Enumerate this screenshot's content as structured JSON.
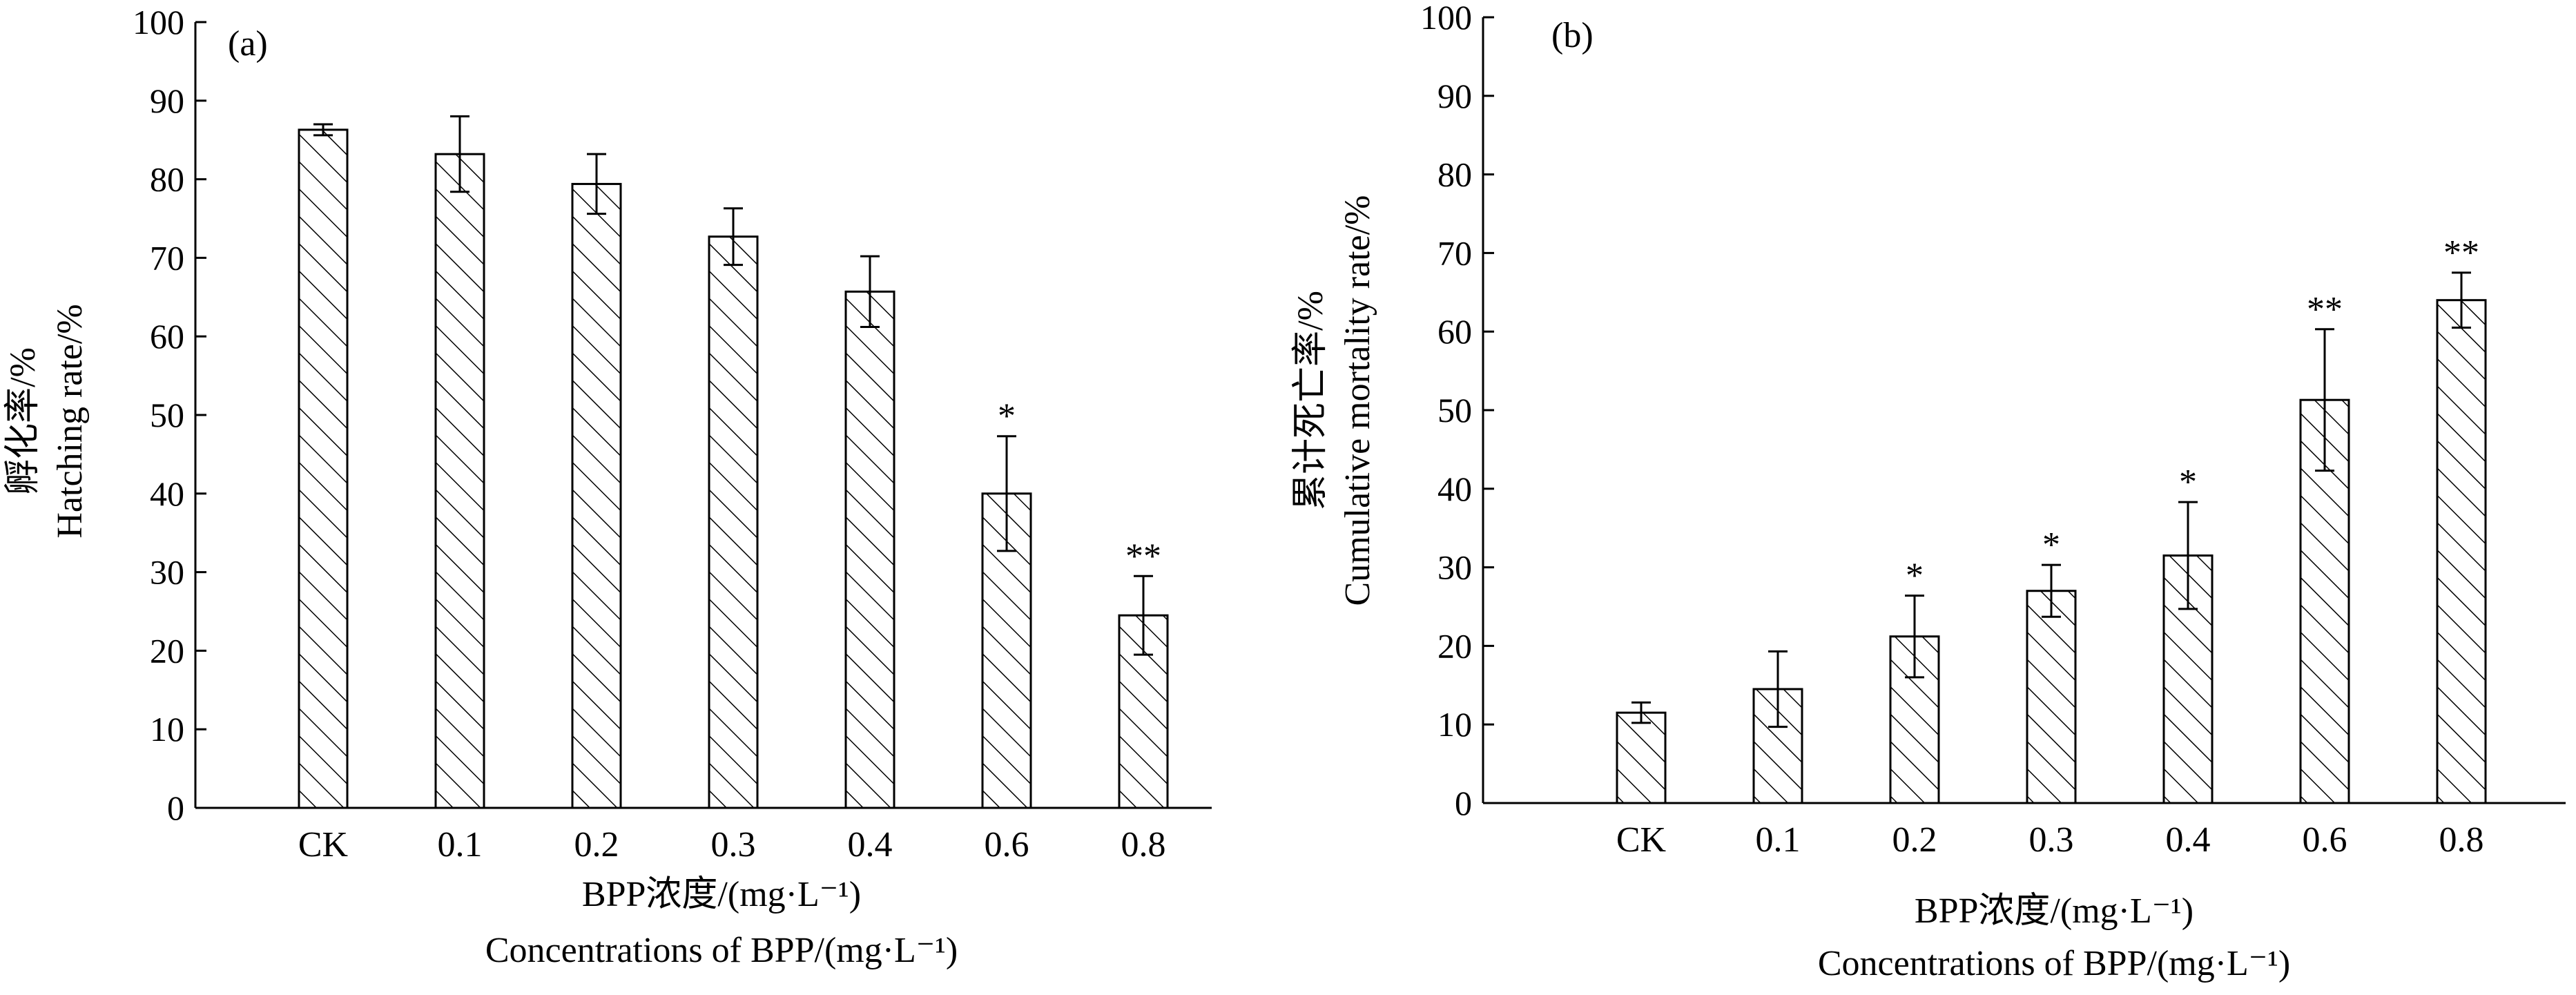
{
  "chart_data": [
    {
      "type": "bar",
      "panel_label": "(a)",
      "categories": [
        "CK",
        "0.1",
        "0.2",
        "0.3",
        "0.4",
        "0.6",
        "0.8"
      ],
      "values": [
        86.3,
        83.2,
        79.4,
        72.7,
        65.7,
        40.0,
        24.5
      ],
      "errors": [
        0.7,
        4.8,
        3.8,
        3.6,
        4.5,
        7.3,
        5.0
      ],
      "significance": [
        "",
        "",
        "",
        "",
        "",
        "*",
        "**"
      ],
      "ylabel_cn": "孵化率/%",
      "ylabel_en": "Hatching rate/%",
      "xlabel_cn": "BPP浓度/(mg·L⁻¹)",
      "xlabel_en": "Concentrations of BPP/(mg·L⁻¹)",
      "ylim": [
        0,
        100
      ],
      "yticks": [
        0,
        10,
        20,
        30,
        40,
        50,
        60,
        70,
        80,
        90,
        100
      ],
      "fill": "diagonal-hatch",
      "grid": false
    },
    {
      "type": "bar",
      "panel_label": "(b)",
      "categories": [
        "CK",
        "0.1",
        "0.2",
        "0.3",
        "0.4",
        "0.6",
        "0.8"
      ],
      "values": [
        11.5,
        14.5,
        21.2,
        27.0,
        31.5,
        51.3,
        64.0
      ],
      "errors": [
        1.3,
        4.8,
        5.2,
        3.3,
        6.8,
        9.0,
        3.5
      ],
      "significance": [
        "",
        "",
        "*",
        "*",
        "*",
        "**",
        "**"
      ],
      "ylabel_cn": "累计死亡率/%",
      "ylabel_en": "Cumulative mortality rate/%",
      "xlabel_cn": "BPP浓度/(mg·L⁻¹)",
      "xlabel_en": "Concentrations of BPP/(mg·L⁻¹)",
      "ylim": [
        0,
        100
      ],
      "yticks": [
        0,
        10,
        20,
        30,
        40,
        50,
        60,
        70,
        80,
        90,
        100
      ],
      "fill": "diagonal-hatch",
      "grid": false
    }
  ]
}
